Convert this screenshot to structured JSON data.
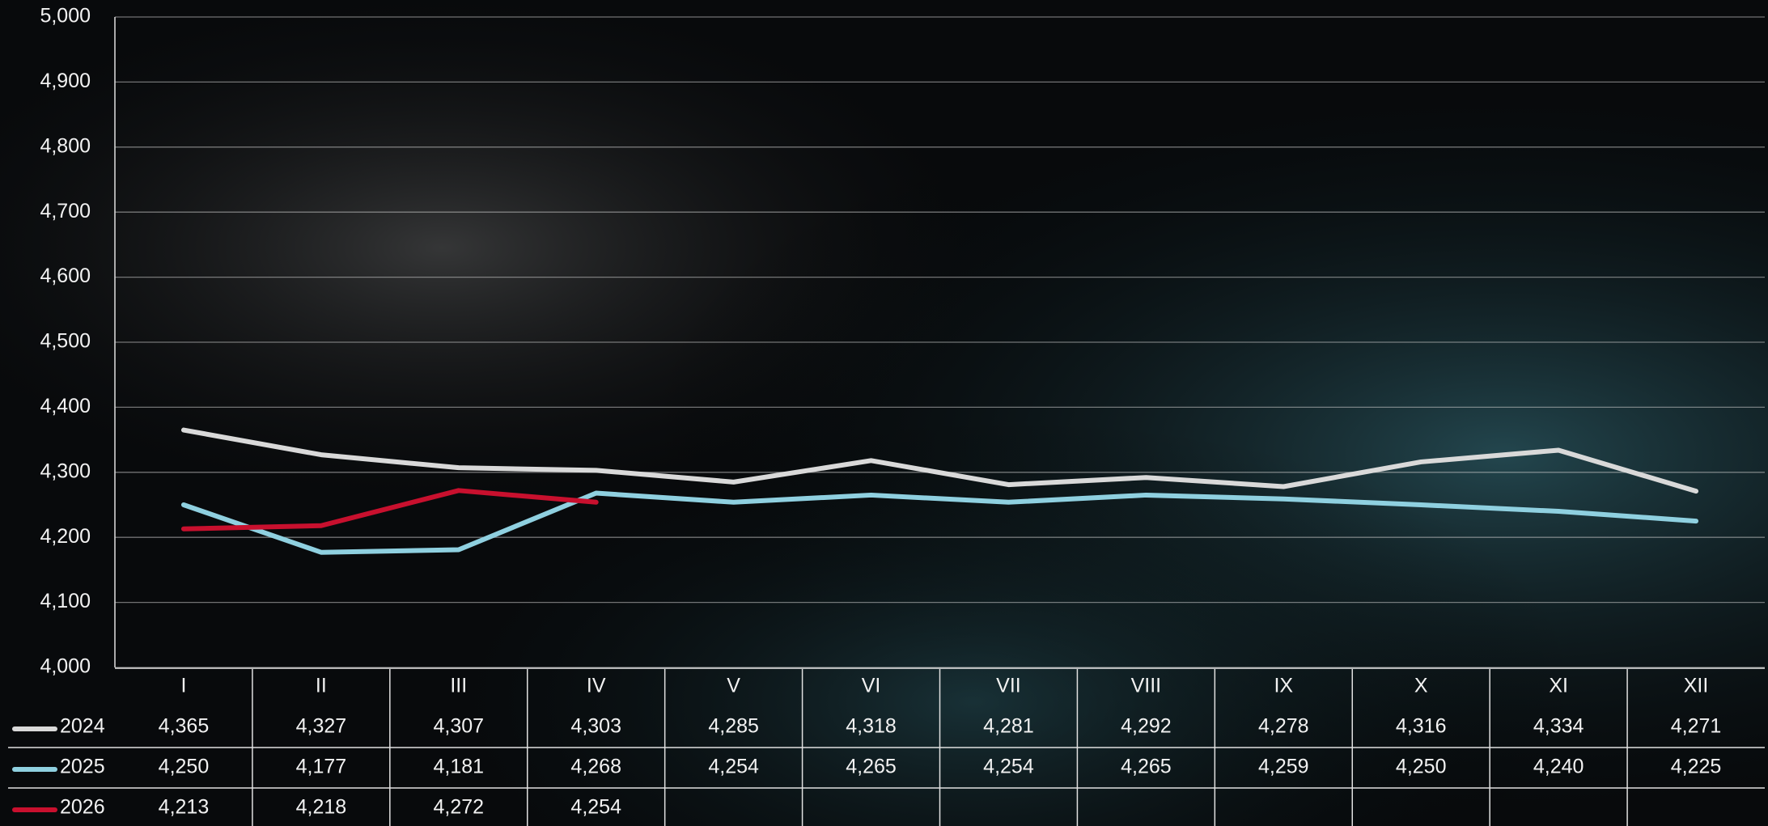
{
  "chart_data": {
    "type": "line",
    "categories": [
      "I",
      "II",
      "III",
      "IV",
      "V",
      "VI",
      "VII",
      "VIII",
      "IX",
      "X",
      "XI",
      "XII"
    ],
    "series": [
      {
        "name": "2024",
        "color": "#d9d9d9",
        "values": [
          4365,
          4327,
          4307,
          4303,
          4285,
          4318,
          4281,
          4292,
          4278,
          4316,
          4334,
          4271
        ],
        "value_labels": [
          "4,365",
          "4,327",
          "4,307",
          "4,303",
          "4,285",
          "4,318",
          "4,281",
          "4,292",
          "4,278",
          "4,316",
          "4,334",
          "4,271"
        ]
      },
      {
        "name": "2025",
        "color": "#8fd0e0",
        "values": [
          4250,
          4177,
          4181,
          4268,
          4254,
          4265,
          4254,
          4265,
          4259,
          4250,
          4240,
          4225
        ],
        "value_labels": [
          "4,250",
          "4,177",
          "4,181",
          "4,268",
          "4,254",
          "4,265",
          "4,254",
          "4,265",
          "4,259",
          "4,250",
          "4,240",
          "4,225"
        ]
      },
      {
        "name": "2026",
        "color": "#c8102e",
        "values": [
          4213,
          4218,
          4272,
          4254,
          null,
          null,
          null,
          null,
          null,
          null,
          null,
          null
        ],
        "value_labels": [
          "4,213",
          "4,218",
          "4,272",
          "4,254",
          null,
          null,
          null,
          null,
          null,
          null,
          null,
          null
        ]
      }
    ],
    "ylim": [
      4000,
      5000
    ],
    "yticks": [
      {
        "value": 4000,
        "label": "4,000"
      },
      {
        "value": 4100,
        "label": "4,100"
      },
      {
        "value": 4200,
        "label": "4,200"
      },
      {
        "value": 4300,
        "label": "4,300"
      },
      {
        "value": 4400,
        "label": "4,400"
      },
      {
        "value": 4500,
        "label": "4,500"
      },
      {
        "value": 4600,
        "label": "4,600"
      },
      {
        "value": 4700,
        "label": "4,700"
      },
      {
        "value": 4800,
        "label": "4,800"
      },
      {
        "value": 4900,
        "label": "4,900"
      },
      {
        "value": 5000,
        "label": "5,000"
      }
    ],
    "grid": true
  }
}
